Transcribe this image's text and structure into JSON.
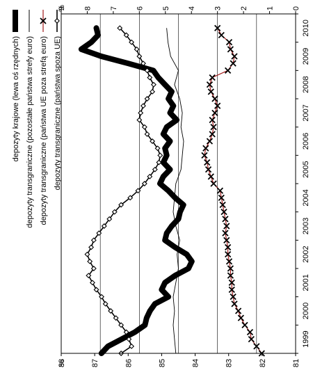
{
  "chart_data": {
    "type": "line",
    "orientation": "rotated-90-ccw",
    "x_ticks": [
      "1999",
      "2000",
      "2001",
      "2002",
      "2003",
      "2004",
      "2005",
      "2006",
      "2007",
      "2008",
      "2009",
      "2010"
    ],
    "left_axis": {
      "unit": "%",
      "range": [
        81,
        88
      ],
      "ticks": [
        "81",
        "82",
        "83",
        "84",
        "85",
        "86",
        "87",
        "88"
      ]
    },
    "right_axis": {
      "unit": "%",
      "range": [
        0,
        9
      ],
      "ticks": [
        "0",
        "1",
        "2",
        "3",
        "4",
        "5",
        "6",
        "7",
        "8",
        "9"
      ]
    },
    "grid": "horizontal gridlines at right-axis 1.5, 3, 4.5, 6, 7.5",
    "legend_position": "top (rotated)",
    "series": [
      {
        "name": "depozyty krajowe (lewa oś rzędnych)",
        "axis": "left",
        "style": "thick-black",
        "points": [
          [
            1999.0,
            86.8
          ],
          [
            1999.25,
            86.6
          ],
          [
            1999.5,
            86.2
          ],
          [
            1999.75,
            85.8
          ],
          [
            2000.0,
            85.5
          ],
          [
            2000.25,
            85.45
          ],
          [
            2000.5,
            85.35
          ],
          [
            2000.75,
            85.2
          ],
          [
            2001.0,
            84.8
          ],
          [
            2001.25,
            85.0
          ],
          [
            2001.5,
            84.9
          ],
          [
            2001.75,
            84.6
          ],
          [
            2002.0,
            84.2
          ],
          [
            2002.25,
            84.1
          ],
          [
            2002.5,
            84.25
          ],
          [
            2002.75,
            84.6
          ],
          [
            2003.0,
            84.9
          ],
          [
            2003.25,
            84.85
          ],
          [
            2003.5,
            84.7
          ],
          [
            2003.75,
            84.5
          ],
          [
            2004.0,
            84.45
          ],
          [
            2004.25,
            84.35
          ],
          [
            2004.5,
            84.6
          ],
          [
            2004.75,
            84.8
          ],
          [
            2005.0,
            85.05
          ],
          [
            2005.25,
            84.95
          ],
          [
            2005.5,
            84.75
          ],
          [
            2005.75,
            84.95
          ],
          [
            2006.0,
            84.85
          ],
          [
            2006.25,
            84.9
          ],
          [
            2006.5,
            84.75
          ],
          [
            2006.75,
            84.95
          ],
          [
            2007.0,
            84.85
          ],
          [
            2007.25,
            84.55
          ],
          [
            2007.5,
            84.75
          ],
          [
            2007.75,
            84.65
          ],
          [
            2008.0,
            84.8
          ],
          [
            2008.25,
            84.7
          ],
          [
            2008.5,
            84.9
          ],
          [
            2008.75,
            85.1
          ],
          [
            2009.0,
            85.25
          ],
          [
            2009.25,
            86.0
          ],
          [
            2009.5,
            86.8
          ],
          [
            2009.75,
            87.4
          ],
          [
            2010.0,
            87.1
          ],
          [
            2010.25,
            86.9
          ],
          [
            2010.5,
            86.95
          ]
        ]
      },
      {
        "name": "depozyty transgraniczne (pozostałe państwa strefy euro)",
        "axis": "right",
        "style": "thin-black",
        "points": [
          [
            1999.0,
            4.6
          ],
          [
            1999.5,
            4.65
          ],
          [
            2000.0,
            4.7
          ],
          [
            2000.5,
            4.65
          ],
          [
            2001.0,
            4.7
          ],
          [
            2001.5,
            4.6
          ],
          [
            2002.0,
            4.5
          ],
          [
            2002.5,
            4.55
          ],
          [
            2003.0,
            4.45
          ],
          [
            2003.5,
            4.6
          ],
          [
            2004.0,
            4.7
          ],
          [
            2004.5,
            4.65
          ],
          [
            2005.0,
            4.6
          ],
          [
            2005.5,
            4.4
          ],
          [
            2006.0,
            4.35
          ],
          [
            2006.5,
            4.3
          ],
          [
            2007.0,
            4.4
          ],
          [
            2007.5,
            4.35
          ],
          [
            2008.0,
            4.45
          ],
          [
            2008.5,
            4.65
          ],
          [
            2009.0,
            4.5
          ],
          [
            2009.5,
            4.8
          ],
          [
            2010.0,
            4.9
          ],
          [
            2010.5,
            4.95
          ]
        ]
      },
      {
        "name": "depozyty transgraniczne (państwa UE poza strefą euro)",
        "axis": "right",
        "style": "x-markers",
        "points": [
          [
            1999.0,
            1.3
          ],
          [
            1999.25,
            1.5
          ],
          [
            1999.5,
            1.7
          ],
          [
            1999.75,
            1.75
          ],
          [
            2000.0,
            1.95
          ],
          [
            2000.25,
            2.1
          ],
          [
            2000.5,
            2.2
          ],
          [
            2000.75,
            2.35
          ],
          [
            2001.0,
            2.4
          ],
          [
            2001.25,
            2.45
          ],
          [
            2001.5,
            2.45
          ],
          [
            2001.75,
            2.5
          ],
          [
            2002.0,
            2.5
          ],
          [
            2002.25,
            2.55
          ],
          [
            2002.5,
            2.6
          ],
          [
            2002.75,
            2.6
          ],
          [
            2003.0,
            2.65
          ],
          [
            2003.25,
            2.7
          ],
          [
            2003.5,
            2.65
          ],
          [
            2003.75,
            2.7
          ],
          [
            2004.0,
            2.75
          ],
          [
            2004.25,
            2.8
          ],
          [
            2004.5,
            2.85
          ],
          [
            2004.75,
            2.9
          ],
          [
            2005.0,
            3.15
          ],
          [
            2005.25,
            3.25
          ],
          [
            2005.5,
            3.35
          ],
          [
            2005.75,
            3.4
          ],
          [
            2006.0,
            3.5
          ],
          [
            2006.25,
            3.45
          ],
          [
            2006.5,
            3.3
          ],
          [
            2006.75,
            3.2
          ],
          [
            2007.0,
            3.15
          ],
          [
            2007.25,
            3.2
          ],
          [
            2007.5,
            3.1
          ],
          [
            2007.75,
            3.0
          ],
          [
            2008.0,
            3.1
          ],
          [
            2008.25,
            3.25
          ],
          [
            2008.5,
            3.3
          ],
          [
            2008.75,
            3.2
          ],
          [
            2009.0,
            2.6
          ],
          [
            2009.25,
            2.4
          ],
          [
            2009.5,
            2.35
          ],
          [
            2009.75,
            2.5
          ],
          [
            2010.0,
            2.55
          ],
          [
            2010.25,
            2.85
          ],
          [
            2010.5,
            3.0
          ]
        ]
      },
      {
        "name": "depozyty transgraniczne (państwa spoza UE)",
        "axis": "right",
        "style": "diamond-markers",
        "points": [
          [
            1999.0,
            6.7
          ],
          [
            1999.25,
            6.3
          ],
          [
            1999.5,
            6.4
          ],
          [
            1999.75,
            6.5
          ],
          [
            2000.0,
            6.7
          ],
          [
            2000.25,
            6.9
          ],
          [
            2000.5,
            7.1
          ],
          [
            2000.75,
            7.3
          ],
          [
            2001.0,
            7.45
          ],
          [
            2001.25,
            7.65
          ],
          [
            2001.5,
            7.8
          ],
          [
            2001.75,
            7.95
          ],
          [
            2002.0,
            7.75
          ],
          [
            2002.25,
            7.9
          ],
          [
            2002.5,
            8.0
          ],
          [
            2002.75,
            7.85
          ],
          [
            2003.0,
            7.75
          ],
          [
            2003.25,
            7.55
          ],
          [
            2003.5,
            7.35
          ],
          [
            2003.75,
            7.15
          ],
          [
            2004.0,
            6.95
          ],
          [
            2004.25,
            6.7
          ],
          [
            2004.5,
            6.35
          ],
          [
            2004.75,
            6.05
          ],
          [
            2005.0,
            5.8
          ],
          [
            2005.25,
            5.6
          ],
          [
            2005.5,
            5.4
          ],
          [
            2005.75,
            5.25
          ],
          [
            2006.0,
            5.2
          ],
          [
            2006.25,
            5.3
          ],
          [
            2006.5,
            5.5
          ],
          [
            2006.75,
            5.7
          ],
          [
            2007.0,
            5.8
          ],
          [
            2007.25,
            6.0
          ],
          [
            2007.5,
            5.95
          ],
          [
            2007.75,
            5.85
          ],
          [
            2008.0,
            5.7
          ],
          [
            2008.25,
            5.5
          ],
          [
            2008.5,
            5.45
          ],
          [
            2008.75,
            5.6
          ],
          [
            2009.0,
            5.7
          ],
          [
            2009.25,
            5.85
          ],
          [
            2009.5,
            6.0
          ],
          [
            2009.75,
            6.1
          ],
          [
            2010.0,
            6.3
          ],
          [
            2010.25,
            6.5
          ],
          [
            2010.5,
            6.75
          ]
        ]
      }
    ]
  },
  "colors": {
    "ink": "#000000",
    "x_series_line": "#a11a1a",
    "grid": "#000000"
  }
}
